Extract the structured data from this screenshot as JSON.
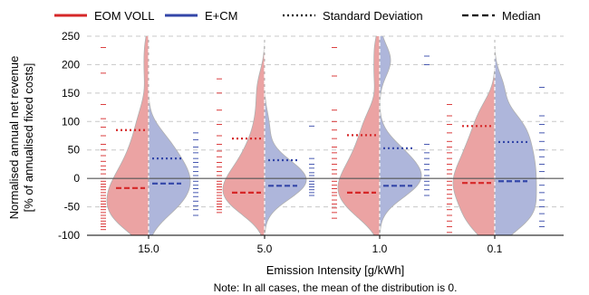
{
  "chart_data": {
    "type": "split-violin",
    "xlabel": "Emission Intensity [g/kWh]",
    "ylabel_line1": "Normalised annual net revenue",
    "ylabel_line2": "[% of annualised fixed costs]",
    "note": "Note: In all cases, the mean of the distribution is 0.",
    "ylim": [
      -100,
      250
    ],
    "yticks": [
      -100,
      -50,
      0,
      50,
      100,
      150,
      200,
      250
    ],
    "grid": true,
    "legend_position": "top",
    "legend": [
      {
        "label": "EOM VOLL",
        "style": "solid",
        "color": "#d62728"
      },
      {
        "label": "E+CM",
        "style": "solid",
        "color": "#3346a8"
      },
      {
        "label": "Standard Deviation",
        "style": "dotted",
        "color": "#000000"
      },
      {
        "label": "Median",
        "style": "dashed",
        "color": "#000000"
      }
    ],
    "colors": {
      "eom_line": "#d62728",
      "eom_fill": "#eba3a3",
      "ecm_line": "#3346a8",
      "ecm_fill": "#aeb6db"
    },
    "categories": [
      "15.0",
      "5.0",
      "1.0",
      "0.1"
    ],
    "series": [
      {
        "name": "EOM VOLL",
        "median": [
          -17,
          -25,
          -25,
          -8
        ],
        "std": [
          85,
          70,
          76,
          92
        ],
        "samples": [
          [
            230,
            185,
            130,
            105,
            90,
            75,
            60,
            50,
            40,
            30,
            22,
            15,
            8,
            0,
            -5,
            -10,
            -15,
            -20,
            -25,
            -30,
            -35,
            -40,
            -45,
            -50,
            -55,
            -60,
            -65,
            -70,
            -75,
            -80,
            -85,
            -90
          ],
          [
            175,
            150,
            120,
            95,
            75,
            60,
            48,
            38,
            28,
            20,
            12,
            5,
            0,
            -5,
            -10,
            -15,
            -20,
            -25,
            -30,
            -35,
            -40,
            -45,
            -50,
            -55,
            -60
          ],
          [
            230,
            180,
            120,
            100,
            85,
            70,
            55,
            45,
            35,
            25,
            15,
            8,
            0,
            -5,
            -12,
            -18,
            -25,
            -30,
            -38,
            -45,
            -52,
            -60,
            -70
          ],
          [
            130,
            110,
            95,
            80,
            65,
            55,
            45,
            35,
            25,
            15,
            8,
            0,
            -5,
            -12,
            -20,
            -28,
            -35,
            -45,
            -55,
            -65,
            -75,
            -85,
            -95
          ]
        ]
      },
      {
        "name": "E+CM",
        "median": [
          -9,
          -13,
          -13,
          -5
        ],
        "std": [
          35,
          32,
          53,
          64
        ],
        "samples": [
          [
            80,
            68,
            55,
            45,
            35,
            28,
            20,
            12,
            5,
            0,
            -5,
            -12,
            -18,
            -25,
            -32,
            -40,
            -48,
            -55,
            -65
          ],
          [
            92,
            35,
            25,
            18,
            10,
            5,
            0,
            -5,
            -10,
            -15,
            -20,
            -25,
            -30
          ],
          [
            215,
            200,
            60,
            45,
            35,
            25,
            15,
            5,
            0,
            -5,
            -12,
            -20,
            -30
          ],
          [
            160,
            110,
            95,
            80,
            65,
            50,
            38,
            25,
            12,
            0,
            -12,
            -25,
            -38,
            -50,
            -62,
            -75,
            -85
          ]
        ]
      }
    ]
  }
}
